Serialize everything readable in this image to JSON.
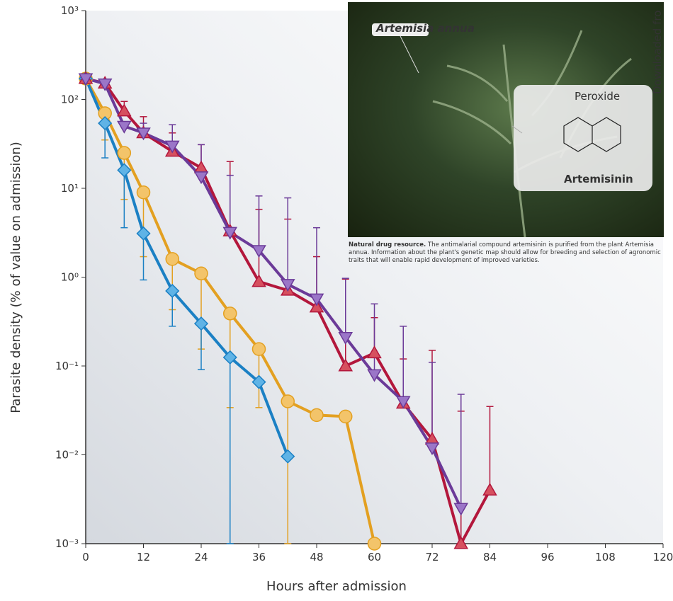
{
  "chart_data": {
    "type": "line",
    "log_scale": "y",
    "x_label": "Hours after admission",
    "y_label": "Parasite density (% of value on admission)",
    "xlim": [
      0,
      120
    ],
    "xticks": [
      0,
      12,
      24,
      36,
      48,
      60,
      72,
      84,
      96,
      108,
      120
    ],
    "ylim": [
      0.001,
      1000
    ],
    "yticks": [
      {
        "value": 0.001,
        "label": "10⁻³"
      },
      {
        "value": 0.01,
        "label": "10⁻²"
      },
      {
        "value": 0.1,
        "label": "10⁻¹"
      },
      {
        "value": 1,
        "label": "10⁰"
      },
      {
        "value": 10,
        "label": "10¹"
      },
      {
        "value": 100,
        "label": "10²"
      },
      {
        "value": 1000,
        "label": "10³"
      }
    ],
    "series": [
      {
        "color": "#e3a021",
        "fill": "#f3c46a",
        "marker": "circle",
        "x": [
          0,
          4,
          8,
          12,
          18,
          24,
          30,
          36,
          42,
          48,
          54,
          60
        ],
        "values": [
          172,
          70,
          25,
          9,
          1.6,
          1.1,
          0.39,
          0.155,
          0.04,
          0.028,
          0.027,
          0.001
        ],
        "error_low": [
          null,
          35,
          7.5,
          1.7,
          0.43,
          0.155,
          0.034,
          0.034,
          0.001,
          null,
          null,
          null
        ],
        "error_high": [
          null,
          null,
          null,
          null,
          null,
          null,
          null,
          null,
          null,
          null,
          null,
          null
        ]
      },
      {
        "color": "#1b80c4",
        "fill": "#5fb3e6",
        "marker": "diamond",
        "x": [
          0,
          4,
          8,
          12,
          18,
          24,
          30,
          36,
          42
        ],
        "values": [
          172,
          54,
          16,
          3.1,
          0.7,
          0.3,
          0.125,
          0.066,
          0.0096
        ],
        "error_low": [
          null,
          22,
          3.6,
          0.93,
          0.28,
          0.091,
          0.001,
          null,
          null
        ],
        "error_high": [
          null,
          null,
          null,
          null,
          null,
          null,
          null,
          null,
          null
        ]
      },
      {
        "color": "#b3173c",
        "fill": "#d6505f",
        "marker": "triangle-up",
        "x": [
          0,
          4,
          8,
          12,
          18,
          24,
          30,
          36,
          42,
          48,
          54,
          60,
          66,
          72,
          78,
          84
        ],
        "values": [
          172,
          152,
          74,
          42,
          26,
          17,
          3.3,
          0.89,
          0.71,
          0.46,
          0.1,
          0.14,
          0.038,
          0.015,
          0.001,
          0.004
        ],
        "error_low": [
          null,
          null,
          null,
          null,
          null,
          null,
          null,
          null,
          null,
          null,
          null,
          null,
          null,
          null,
          null,
          null
        ],
        "error_high": [
          null,
          135,
          95,
          64,
          42,
          31,
          20,
          5.8,
          4.5,
          1.7,
          0.95,
          0.35,
          0.12,
          0.15,
          0.031,
          0.035
        ]
      },
      {
        "color": "#6b3a98",
        "fill": "#9b76c8",
        "marker": "triangle-down",
        "x": [
          0,
          4,
          8,
          12,
          18,
          24,
          30,
          36,
          42,
          48,
          54,
          60,
          66,
          72,
          78
        ],
        "values": [
          172,
          150,
          50,
          42,
          30,
          13.5,
          3.2,
          2.0,
          0.83,
          0.57,
          0.21,
          0.08,
          0.04,
          0.012,
          0.0025
        ],
        "error_low": [
          null,
          null,
          null,
          null,
          null,
          null,
          null,
          null,
          null,
          null,
          null,
          null,
          null,
          null,
          null
        ],
        "error_high": [
          null,
          null,
          null,
          54,
          52,
          31,
          14,
          8.2,
          7.8,
          3.6,
          0.97,
          0.5,
          0.28,
          0.11,
          0.048
        ]
      }
    ]
  },
  "inset": {
    "plant_label": "Artemisia annua",
    "peroxide_label": "Peroxide",
    "compound_label": "Artemisinin",
    "side_note": "Downloaded fro",
    "caption_title": "Natural drug resource.",
    "caption_text": "The antimalarial compound artemisinin is purified from the plant Artemisia annua. Information about the plant's genetic map should allow for breeding and selection of agronomic traits that will enable rapid development of improved varieties."
  }
}
